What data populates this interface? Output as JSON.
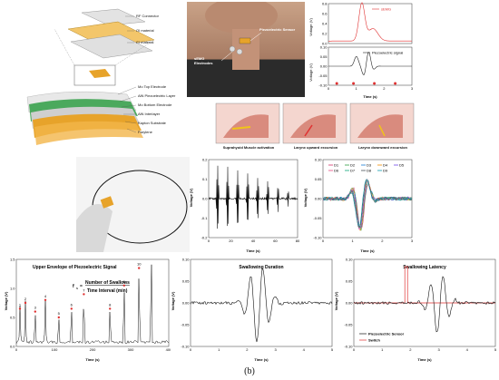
{
  "device": {
    "layers_top": [
      "RF Connector",
      "OI material",
      "CI material"
    ],
    "layers": [
      "Mo Top Electrode",
      "AlN Piezoelectric Layer",
      "Mo Bottom Electrode",
      "AlN Interlayer",
      "Kapton Substrate",
      "Parylene"
    ]
  },
  "neck_photo": {
    "sensor_label": "Piezoelectric Sensor",
    "emg_label": "sEMG Electrodes"
  },
  "top_chart": {
    "semg_legend": "sEMG",
    "piezo_legend": "Piezoelectric signal",
    "ylabel_top": "Voltage (V)",
    "ylabel_bottom": "Voltage (V)",
    "xlabel": "Time (s)",
    "xticks": [
      "0",
      "1",
      "2",
      "3"
    ],
    "yticks_top": [
      "0.8",
      "0.6",
      "0.4",
      "0.2",
      "0.0"
    ],
    "yticks_bottom": [
      "0.10",
      "0.05",
      "0.00",
      "-0.05",
      "-0.10"
    ]
  },
  "anatomy": {
    "captions": [
      "Suprahyoid Muscle activation",
      "Larynx upward excursion",
      "Larynx downward excursion"
    ]
  },
  "mid_charts": {
    "chart1": {
      "ylabel": "Voltage (V)",
      "xlabel": "Time (s)",
      "xticks": [
        "0",
        "20",
        "40",
        "60",
        "80"
      ],
      "yticks": [
        "0.2",
        "0.1",
        "0.0",
        "-0.1",
        "-0.2"
      ]
    },
    "chart2": {
      "ylabel": "Voltage (V)",
      "xlabel": "Time (s)",
      "xticks": [
        "0",
        "1",
        "2",
        "3"
      ],
      "yticks": [
        "0.10",
        "0.05",
        "0.00",
        "-0.05",
        "-0.10"
      ],
      "legend": [
        "D1",
        "D2",
        "D3",
        "D4",
        "D5",
        "D6",
        "D7",
        "D8",
        "D9"
      ],
      "legend_colors": [
        "#d6336c",
        "#2f9e44",
        "#1c7ed6",
        "#f08c00",
        "#7048e8",
        "#e64980",
        "#0ca678",
        "#495057",
        "#1098ad"
      ]
    }
  },
  "bottom_charts": {
    "c1": {
      "title": "Upper Envelope of Piezoelectric Signal",
      "formula_lhs": "f",
      "formula_sub": "s",
      "formula_num": "Number of Swallows",
      "formula_den": "Time Interval (min)",
      "ylabel": "Voltage (V)",
      "xlabel": "Time (s)",
      "xticks": [
        "0",
        "100",
        "200",
        "300",
        "400"
      ],
      "yticks": [
        "1.5",
        "1.0",
        "0.5",
        "0.0"
      ],
      "peak_labels": [
        "1",
        "2",
        "3",
        "4",
        "5",
        "6",
        "7",
        "8",
        "9",
        "10",
        "11"
      ]
    },
    "c2": {
      "title": "Swallowing Duration",
      "ylabel": "Voltage (V)",
      "xlabel": "Time (s)",
      "xticks": [
        "0",
        "1",
        "2",
        "3",
        "4",
        "5"
      ],
      "yticks": [
        "0.10",
        "0.05",
        "0.00",
        "-0.05",
        "-0.10"
      ]
    },
    "c3": {
      "title": "Swallowing Latency",
      "ylabel": "Voltage (V)",
      "xlabel": "Time (s)",
      "xticks": [
        "0",
        "1",
        "2",
        "3",
        "4",
        "5"
      ],
      "yticks": [
        "0.10",
        "0.05",
        "0.00",
        "-0.05",
        "-0.10"
      ],
      "legend": [
        "Piezoelectric Sensor",
        "Switch"
      ]
    }
  },
  "figure_label": "(b)",
  "colors": {
    "semg": "#e03131",
    "piezo": "#222222",
    "switch": "#e03131",
    "peak_marker": "#e03131",
    "layer_gold": "#e7a32a",
    "layer_green": "#2f9e44"
  }
}
